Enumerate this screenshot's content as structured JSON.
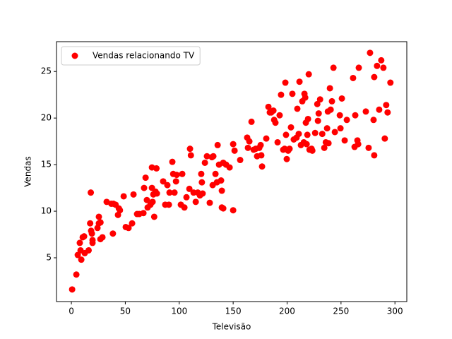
{
  "chart_data": {
    "type": "scatter",
    "xlabel": "Televisão",
    "ylabel": "Vendas",
    "xlim": [
      -13.8,
      311
    ],
    "ylim": [
      0.3,
      28.2
    ],
    "xticks": [
      0,
      50,
      100,
      150,
      200,
      250,
      300
    ],
    "yticks": [
      5,
      10,
      15,
      20,
      25
    ],
    "legend": "upper left",
    "series": [
      {
        "name": "Vendas relacionando TV",
        "color": "#ff0000",
        "x": [
          0.7,
          4.6,
          5.9,
          7.8,
          8.5,
          9.2,
          10.5,
          11.8,
          12.4,
          16,
          17.4,
          18,
          18.3,
          19,
          19.6,
          19.6,
          24.2,
          25.5,
          25.5,
          26.9,
          27,
          28.8,
          32.7,
          37,
          38.5,
          39,
          41,
          43.2,
          44,
          45,
          48.5,
          50.4,
          53,
          56.3,
          57.6,
          60.9,
          62.9,
          66.8,
          67.4,
          68.8,
          70,
          70.7,
          73.3,
          74.7,
          74.7,
          75.3,
          76,
          76.8,
          78,
          78.9,
          79.3,
          85.1,
          87,
          89,
          90.4,
          91,
          93.6,
          94.4,
          95.6,
          97,
          97.6,
          101.5,
          102.8,
          104.8,
          106.7,
          109.4,
          110,
          110.8,
          113.3,
          115.3,
          117.2,
          119.2,
          120.4,
          121,
          121.7,
          123.8,
          125.7,
          128.3,
          130.3,
          131,
          131.6,
          133.6,
          134.9,
          135.6,
          136.9,
          138.8,
          139.5,
          139.5,
          140.8,
          140.8,
          143.4,
          146.7,
          150,
          150,
          151.3,
          156.5,
          163,
          163.7,
          165,
          167,
          169,
          170.9,
          172.2,
          174.2,
          175.5,
          176.1,
          176.8,
          180.7,
          182.7,
          184,
          185.3,
          187.3,
          188,
          189.2,
          191.2,
          193.1,
          194.4,
          196.4,
          197.7,
          198.4,
          199,
          199.7,
          201,
          202.3,
          203.6,
          204.9,
          206.2,
          208.8,
          209.5,
          210.8,
          211.5,
          212.8,
          214.1,
          215.5,
          216.1,
          216.8,
          217.4,
          218.1,
          218.8,
          219.4,
          220.1,
          220.8,
          222.7,
          223.4,
          226,
          228,
          228.6,
          229.3,
          230.6,
          232.6,
          234.5,
          235.9,
          237.1,
          237.8,
          238.4,
          239.7,
          240.4,
          241.6,
          243,
          244.3,
          248.9,
          249.5,
          250.8,
          253.4,
          255.4,
          261.2,
          262.6,
          263.2,
          265.2,
          265.9,
          266.5,
          273,
          275.6,
          276.9,
          280.2,
          280.8,
          280.8,
          283.4,
          285.4,
          287.3,
          289.3,
          290.6,
          291.9,
          293.2,
          295.8
        ],
        "values": [
          1.6,
          3.2,
          5.3,
          6.6,
          5.8,
          4.8,
          7.2,
          7.3,
          5.5,
          5.8,
          8.7,
          12,
          7.9,
          7.6,
          6.9,
          6.6,
          8.2,
          8.7,
          9.4,
          7,
          8.8,
          7.2,
          11,
          10.8,
          7.6,
          10.8,
          10.7,
          9.6,
          10.3,
          10.1,
          11.6,
          8.3,
          8.2,
          8.7,
          11.8,
          9.7,
          9.7,
          9.8,
          12.5,
          13.6,
          11.2,
          10.4,
          10.7,
          12.5,
          14.7,
          11,
          11.8,
          9.4,
          12.1,
          14.6,
          11.9,
          13.2,
          10.7,
          12.8,
          10.7,
          12,
          15.3,
          14,
          12,
          13.2,
          13.9,
          10.7,
          14,
          10.4,
          11.5,
          12.4,
          16.7,
          16,
          12,
          11,
          12,
          11.7,
          14,
          13.1,
          11.9,
          15.2,
          15.9,
          10.9,
          15.8,
          12.8,
          15.9,
          14,
          13.1,
          17.1,
          15,
          13.3,
          12.2,
          10.4,
          10.3,
          15.2,
          15,
          14.7,
          17.2,
          10.1,
          16.5,
          15.5,
          17.9,
          16.8,
          17.5,
          19.6,
          16.6,
          16.7,
          15.9,
          16.8,
          17.1,
          16,
          14.8,
          17.8,
          21.2,
          20.6,
          20.6,
          20.8,
          19.8,
          19.5,
          17.4,
          20.3,
          22.5,
          16.6,
          16.7,
          23.8,
          18.2,
          15.6,
          16.5,
          16.7,
          19,
          22.6,
          17.7,
          17.9,
          21,
          18.3,
          23.9,
          17.1,
          21.8,
          17.4,
          22.6,
          22.2,
          19.5,
          17.2,
          18.2,
          19.9,
          24.7,
          16.6,
          16.7,
          16.5,
          18.4,
          21.5,
          19.7,
          20.5,
          22,
          18.3,
          16.8,
          17.4,
          18.9,
          20.7,
          17.3,
          23.2,
          20.9,
          21.8,
          25.4,
          18.5,
          20.3,
          18.9,
          22.1,
          17.6,
          19.8,
          24.3,
          16.9,
          20.3,
          17.6,
          17.2,
          25.4,
          20.7,
          16.8,
          27,
          19.8,
          24.4,
          16,
          25.6,
          20.9,
          26.2,
          25.4,
          17.8,
          21.4,
          20.6,
          23.8
        ]
      }
    ]
  }
}
